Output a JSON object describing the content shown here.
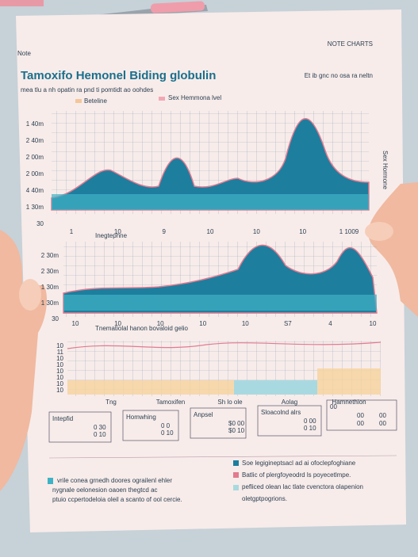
{
  "header": {
    "note_left": "Note",
    "note_right": "NOTE CHARTS",
    "title": "Tamoxifo Hemonel Biding globulin",
    "subtitle": "mea tlu a nh opatin ra pnd ti pomtidt ao oohdes",
    "subtitle_right": "Et ib gnc no osa ra neltn"
  },
  "legend": [
    "Beteline",
    "Sex Hemmona lvel"
  ],
  "side_label": "Sex Hormone",
  "panels": [
    {
      "y_labels": [
        "1 40m",
        "2 40m",
        "2 00m",
        "2 00m",
        "4 40m",
        "1 30m",
        "30"
      ],
      "x_labels": [
        "1",
        "10",
        "9",
        "10",
        "10",
        "10",
        "1 1009"
      ],
      "caption": "Inegtephne"
    },
    {
      "y_labels": [
        "2 30m",
        "2 30m",
        "1 30m",
        "1 30m",
        "30"
      ],
      "x_labels": [
        "10",
        "10",
        "10",
        "10",
        "10",
        "S7",
        "4",
        "10"
      ]
    },
    {
      "title": "Tnematiolal hanon bovaloid gelio",
      "y_labels": [
        "10",
        "11",
        "10",
        "10",
        "10",
        "10",
        "10",
        "10"
      ],
      "x_labels": [
        "Tng",
        "Tamoxifen",
        "Sh lo ole",
        "Aolag",
        "Hamnethion"
      ]
    }
  ],
  "tables": [
    {
      "title": "Intepfid",
      "cells": [
        "0 30",
        "0 10"
      ]
    },
    {
      "title": "Homwhing",
      "cells": [
        "0 0",
        "0 10"
      ]
    },
    {
      "title": "Anpsel",
      "cells": [
        "$0 00",
        "$0 10"
      ]
    },
    {
      "title": "Sloacolnd alrs",
      "cells": [
        "0 00",
        "0 10"
      ]
    },
    {
      "title": "00",
      "cells": [
        "00",
        "00",
        "00",
        "00"
      ]
    }
  ],
  "notes": {
    "left": [
      "vrile conea grnedh doores ograilenl ehler",
      "nygnale oelonesion oaoen thegtcd ac",
      "ptuio ccpertodeloia oleil a scanto of ool cercie."
    ],
    "right": [
      "Soe legigineptsacl ad ai ofoclepfoghiane",
      "Batlic of plergfoyeodrd ls poyecetlmpe.",
      "pefliced olean lac tlate cvenctora olapenion",
      "oletgptpogrions."
    ]
  }
}
